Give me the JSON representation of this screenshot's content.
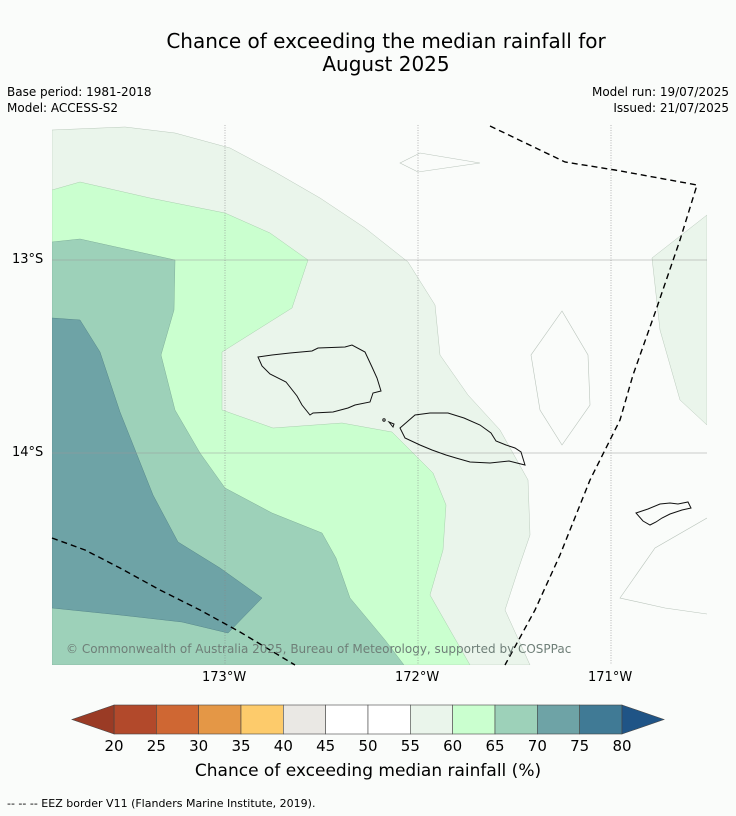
{
  "title_line1": "Chance of exceeding the median rainfall for",
  "title_line2": "August 2025",
  "base_period": "Base period: 1981-2018",
  "model": "Model: ACCESS-S2",
  "model_run": "Model run: 19/07/2025",
  "issued": "Issued: 21/07/2025",
  "lat_labels": [
    "13°S",
    "14°S"
  ],
  "lon_labels": [
    "173°W",
    "172°W",
    "171°W"
  ],
  "copyright": "© Commonwealth of Australia 2025, Bureau of Meteorology, supported by COSPPac",
  "colorbar": {
    "ticks": [
      "20",
      "25",
      "30",
      "35",
      "40",
      "45",
      "50",
      "55",
      "60",
      "65",
      "70",
      "75",
      "80"
    ],
    "colors": [
      "#b2492b",
      "#cf6733",
      "#e49746",
      "#fdcb6b",
      "#eae8e4",
      "#ffffff",
      "#ffffff",
      "#eaf5eb",
      "#caffcf",
      "#9dd1b9",
      "#6ea3a6",
      "#407a95"
    ],
    "under_color": "#9a3b25",
    "over_color": "#1f5486",
    "label": "Chance of exceeding median rainfall (%)"
  },
  "footnote": "--  --  -- EEZ border V11 (Flanders Marine Institute, 2019)."
}
